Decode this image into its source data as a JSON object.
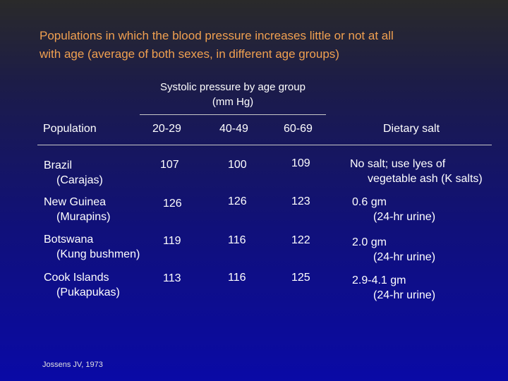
{
  "title": {
    "line1": "Populations in which the blood pressure increases little or not at all",
    "line2": "with age (average of both sexes, in different age groups)"
  },
  "subheader": {
    "line1": "Systolic pressure by age group",
    "line2": "(mm Hg)"
  },
  "columns": {
    "population": "Population",
    "age1": "20-29",
    "age2": "40-49",
    "age3": "60-69",
    "salt": "Dietary salt"
  },
  "rows": [
    {
      "name": "Brazil",
      "group": "(Carajas)",
      "v1": "107",
      "v2": "100",
      "v3": "109",
      "salt1": "No salt; use lyes of",
      "salt2": "vegetable ash (K salts)"
    },
    {
      "name": "New Guinea",
      "group": "(Murapins)",
      "v1": "126",
      "v2": "126",
      "v3": "123",
      "salt1": "0.6 gm",
      "salt2": "(24-hr urine)"
    },
    {
      "name": "Botswana",
      "group": "(Kung bushmen)",
      "v1": "119",
      "v2": "116",
      "v3": "122",
      "salt1": "2.0 gm",
      "salt2": "(24-hr urine)"
    },
    {
      "name": "Cook Islands",
      "group": "(Pukapukas)",
      "v1": "113",
      "v2": "116",
      "v3": "125",
      "salt1": "2.9-4.1 gm",
      "salt2": "(24-hr urine)"
    }
  ],
  "credit": "Jossens JV, 1973"
}
